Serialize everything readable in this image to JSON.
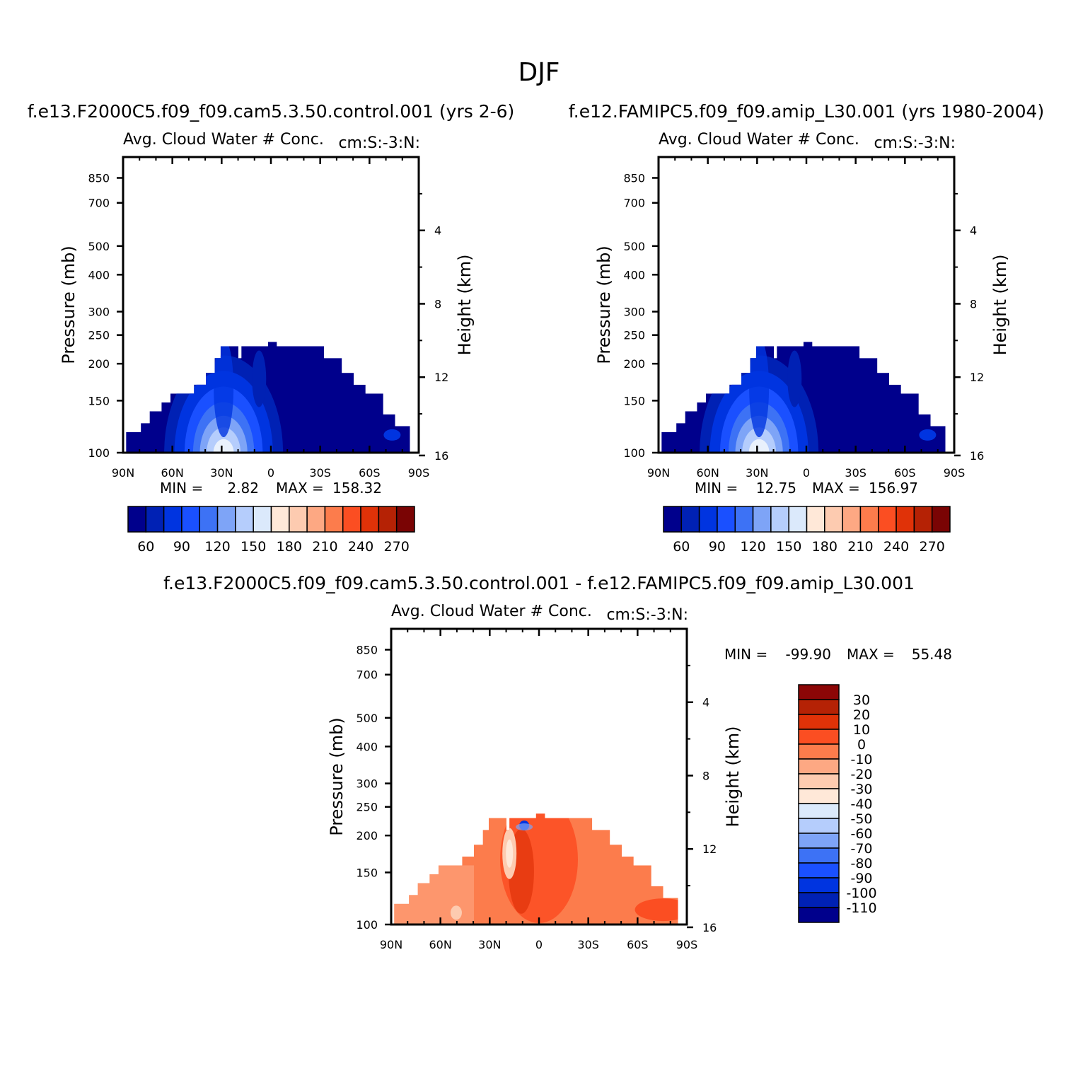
{
  "page_title": "DJF",
  "chart_data": [
    {
      "type": "heatmap",
      "title": "f.e13.F2000C5.f09_f09.cam5.3.50.control.001 (yrs 2-6)",
      "subtitle_left": "Avg. Cloud Water # Conc.",
      "subtitle_right": "cm:S:-3:N:",
      "ylabel": "Pressure (mb)",
      "ylabel_right": "Height (km)",
      "x_ticks": [
        "90N",
        "60N",
        "30N",
        "0",
        "30S",
        "60S",
        "90S"
      ],
      "y_ticks": [
        "100",
        "150",
        "200",
        "250",
        "300",
        "400",
        "500",
        "700",
        "850"
      ],
      "y_ticks_right": [
        "16",
        "12",
        "8",
        "4"
      ],
      "ylim": [
        1000,
        100
      ],
      "xlim": [
        90,
        -90
      ],
      "stats": {
        "min_label": "MIN =",
        "min": "2.82",
        "max_label": "MAX =",
        "max": "158.32"
      },
      "colorbar": {
        "orientation": "horizontal",
        "labels": [
          "60",
          "90",
          "120",
          "150",
          "180",
          "210",
          "240",
          "270"
        ],
        "colors": [
          "#00008c",
          "#0021b4",
          "#0034e0",
          "#1a50ff",
          "#3d72f5",
          "#7ea4f7",
          "#b5cdfc",
          "#dbe9fb",
          "#ffe8d8",
          "#fdcbb0",
          "#fda883",
          "#fc7c4c",
          "#fb4e22",
          "#e03208",
          "#b52205",
          "#7a0404"
        ]
      }
    },
    {
      "type": "heatmap",
      "title": "f.e12.FAMIPC5.f09_f09.amip_L30.001 (yrs 1980-2004)",
      "subtitle_left": "Avg. Cloud Water # Conc.",
      "subtitle_right": "cm:S:-3:N:",
      "ylabel": "Pressure (mb)",
      "ylabel_right": "Height (km)",
      "x_ticks": [
        "90N",
        "60N",
        "30N",
        "0",
        "30S",
        "60S",
        "90S"
      ],
      "y_ticks": [
        "100",
        "150",
        "200",
        "250",
        "300",
        "400",
        "500",
        "700",
        "850"
      ],
      "y_ticks_right": [
        "16",
        "12",
        "8",
        "4"
      ],
      "ylim": [
        1000,
        100
      ],
      "xlim": [
        90,
        -90
      ],
      "stats": {
        "min_label": "MIN =",
        "min": "12.75",
        "max_label": "MAX =",
        "max": "156.97"
      },
      "colorbar": {
        "orientation": "horizontal",
        "labels": [
          "60",
          "90",
          "120",
          "150",
          "180",
          "210",
          "240",
          "270"
        ],
        "colors": [
          "#00008c",
          "#0021b4",
          "#0034e0",
          "#1a50ff",
          "#3d72f5",
          "#7ea4f7",
          "#b5cdfc",
          "#dbe9fb",
          "#ffe8d8",
          "#fdcbb0",
          "#fda883",
          "#fc7c4c",
          "#fb4e22",
          "#e03208",
          "#b52205",
          "#7a0404"
        ]
      }
    },
    {
      "type": "heatmap",
      "title": "f.e13.F2000C5.f09_f09.cam5.3.50.control.001 - f.e12.FAMIPC5.f09_f09.amip_L30.001",
      "subtitle_left": "Avg. Cloud Water # Conc.",
      "subtitle_right": "cm:S:-3:N:",
      "ylabel": "Pressure (mb)",
      "ylabel_right": "Height (km)",
      "x_ticks": [
        "90N",
        "60N",
        "30N",
        "0",
        "30S",
        "60S",
        "90S"
      ],
      "y_ticks": [
        "100",
        "150",
        "200",
        "250",
        "300",
        "400",
        "500",
        "700",
        "850"
      ],
      "y_ticks_right": [
        "16",
        "12",
        "8",
        "4"
      ],
      "ylim": [
        1000,
        100
      ],
      "xlim": [
        90,
        -90
      ],
      "stats": {
        "min_label": "MIN =",
        "min": "-99.90",
        "max_label": "MAX =",
        "max": "55.48"
      },
      "colorbar": {
        "orientation": "vertical",
        "labels": [
          "30",
          "20",
          "10",
          "0",
          "-10",
          "-20",
          "-30",
          "-40",
          "-50",
          "-60",
          "-70",
          "-80",
          "-90",
          "-100",
          "-110"
        ],
        "colors": [
          "#8c0606",
          "#b52205",
          "#e03208",
          "#fb4e22",
          "#fc7c4c",
          "#fda883",
          "#fdcbb0",
          "#ffe8d8",
          "#dbe9fb",
          "#b5cdfc",
          "#7ea4f7",
          "#3d72f5",
          "#1a50ff",
          "#0034e0",
          "#0021b4",
          "#00008c"
        ]
      }
    }
  ]
}
